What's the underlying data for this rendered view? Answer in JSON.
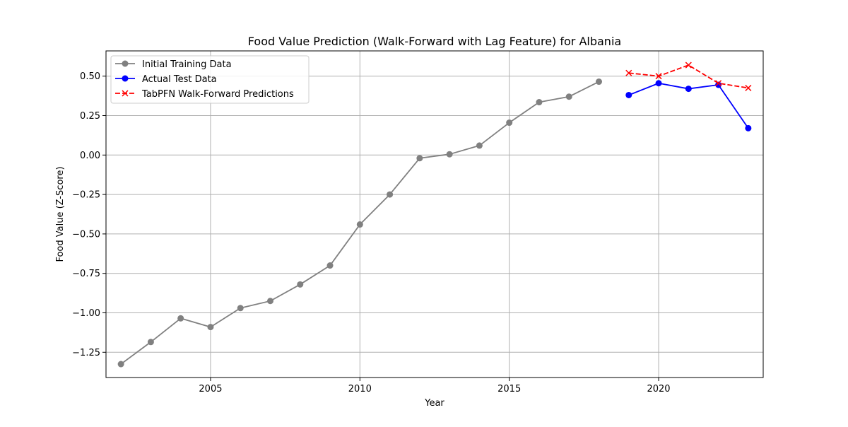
{
  "chart_data": {
    "type": "line",
    "title": "Food Value Prediction (Walk-Forward with Lag Feature) for Albania",
    "xlabel": "Year",
    "ylabel": "Food Value (Z-Score)",
    "xlim": [
      2001.5,
      2023.5
    ],
    "ylim": [
      -1.41,
      0.66
    ],
    "xticks": [
      2005,
      2010,
      2015,
      2020
    ],
    "yticks": [
      0.5,
      0.25,
      0.0,
      -0.25,
      -0.5,
      -0.75,
      -1.0,
      -1.25
    ],
    "ytick_labels": [
      "0.50",
      "0.25",
      "0.00",
      "−0.25",
      "−0.50",
      "−0.75",
      "−1.00",
      "−1.25"
    ],
    "grid": true,
    "legend_position": "upper left",
    "series": [
      {
        "name": "Initial Training Data",
        "color": "#808080",
        "marker": "circle",
        "linestyle": "solid",
        "x": [
          2002,
          2003,
          2004,
          2005,
          2006,
          2007,
          2008,
          2009,
          2010,
          2011,
          2012,
          2013,
          2014,
          2015,
          2016,
          2017,
          2018
        ],
        "y": [
          -1.325,
          -1.185,
          -1.035,
          -1.09,
          -0.97,
          -0.925,
          -0.82,
          -0.7,
          -0.44,
          -0.25,
          -0.02,
          0.005,
          0.06,
          0.205,
          0.335,
          0.37,
          0.465
        ]
      },
      {
        "name": "Actual Test Data",
        "color": "#0000ff",
        "marker": "circle",
        "linestyle": "solid",
        "x": [
          2019,
          2020,
          2021,
          2022,
          2023
        ],
        "y": [
          0.38,
          0.455,
          0.42,
          0.445,
          0.17
        ]
      },
      {
        "name": "TabPFN Walk-Forward Predictions",
        "color": "#ff0000",
        "marker": "x",
        "linestyle": "dashed",
        "x": [
          2019,
          2020,
          2021,
          2022,
          2023
        ],
        "y": [
          0.52,
          0.5,
          0.57,
          0.455,
          0.425
        ]
      }
    ]
  }
}
